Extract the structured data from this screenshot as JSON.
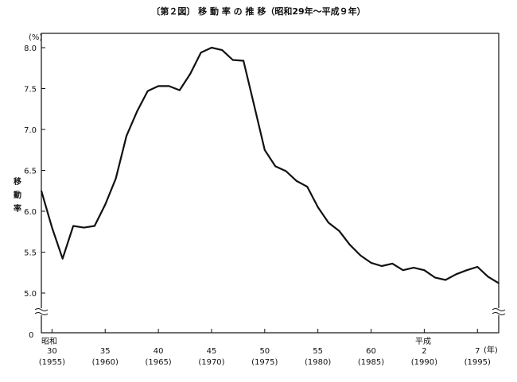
{
  "chart_data": {
    "type": "line",
    "title": "〔第２図〕 移 動 率 の 推 移（昭和29年～平成９年）",
    "ylabel": "移動率",
    "y_unit": "(%)",
    "y_axis_break": true,
    "ylim": [
      5.0,
      8.0
    ],
    "y_ticks": [
      "8.0",
      "7.5",
      "7.0",
      "6.5",
      "6.0",
      "5.5",
      "5.0"
    ],
    "y_zero_label": "0",
    "x_unit": "(年)",
    "x_era_labels": [
      "昭和",
      "平成"
    ],
    "x_ticks": [
      {
        "x": 1955,
        "era": "30",
        "western": "(1955)"
      },
      {
        "x": 1960,
        "era": "35",
        "western": "(1960)"
      },
      {
        "x": 1965,
        "era": "40",
        "western": "(1965)"
      },
      {
        "x": 1970,
        "era": "45",
        "western": "(1970)"
      },
      {
        "x": 1975,
        "era": "50",
        "western": "(1975)"
      },
      {
        "x": 1980,
        "era": "55",
        "western": "(1980)"
      },
      {
        "x": 1985,
        "era": "60",
        "western": "(1985)"
      },
      {
        "x": 1990,
        "era": "2",
        "western": "(1990)"
      },
      {
        "x": 1995,
        "era": "7",
        "western": "(1995)"
      }
    ],
    "xlim": [
      1954,
      1997
    ],
    "series": [
      {
        "x": [
          1954,
          1955,
          1956,
          1957,
          1958,
          1959,
          1960,
          1961,
          1962,
          1963,
          1964,
          1965,
          1966,
          1967,
          1968,
          1969,
          1970,
          1971,
          1972,
          1973,
          1974,
          1975,
          1976,
          1977,
          1978,
          1979,
          1980,
          1981,
          1982,
          1983,
          1984,
          1985,
          1986,
          1987,
          1988,
          1989,
          1990,
          1991,
          1992,
          1993,
          1994,
          1995,
          1996,
          1997
        ],
        "values": [
          6.25,
          5.8,
          5.42,
          5.82,
          5.8,
          5.82,
          6.08,
          6.4,
          6.92,
          7.22,
          7.47,
          7.53,
          7.53,
          7.48,
          7.68,
          7.94,
          8.0,
          7.97,
          7.85,
          7.84,
          7.3,
          6.75,
          6.55,
          6.49,
          6.37,
          6.3,
          6.05,
          5.86,
          5.76,
          5.59,
          5.46,
          5.37,
          5.33,
          5.36,
          5.28,
          5.31,
          5.28,
          5.19,
          5.16,
          5.23,
          5.28,
          5.32,
          5.2,
          5.12
        ]
      }
    ]
  }
}
